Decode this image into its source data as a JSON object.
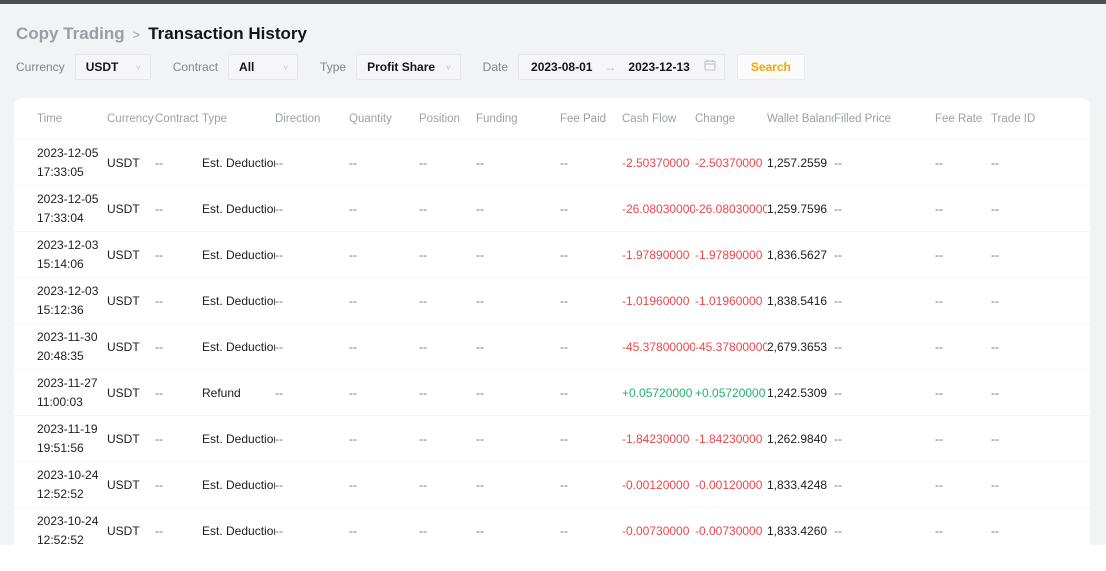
{
  "breadcrumb": {
    "parent": "Copy Trading",
    "separator": ">",
    "current": "Transaction History"
  },
  "filters": {
    "currency": {
      "label": "Currency",
      "value": "USDT"
    },
    "contract": {
      "label": "Contract",
      "value": "All"
    },
    "type": {
      "label": "Type",
      "value": "Profit Share"
    },
    "date": {
      "label": "Date",
      "from": "2023-08-01",
      "arrow": "→",
      "to": "2023-12-13"
    },
    "search_label": "Search"
  },
  "colors": {
    "negative": "#ef454a",
    "positive": "#20b26c",
    "accent": "#f7a600"
  },
  "table": {
    "columns": [
      "Time",
      "Currency",
      "Contract",
      "Type",
      "Direction",
      "Quantity",
      "Position",
      "Funding",
      "Fee Paid",
      "Cash Flow",
      "Change",
      "Wallet Balance",
      "Filled Price",
      "Fee Rate",
      "Trade ID"
    ],
    "rows": [
      {
        "date": "2023-12-05",
        "time": "17:33:05",
        "currency": "USDT",
        "contract": "--",
        "type": "Est. Deduction",
        "direction": "--",
        "quantity": "--",
        "position": "--",
        "funding": "--",
        "feePaid": "--",
        "cashFlow": "-2.50370000",
        "change": "-2.50370000",
        "walletBalance": "1,257.2559",
        "filledPrice": "--",
        "feeRate": "--",
        "tradeId": "--"
      },
      {
        "date": "2023-12-05",
        "time": "17:33:04",
        "currency": "USDT",
        "contract": "--",
        "type": "Est. Deduction",
        "direction": "--",
        "quantity": "--",
        "position": "--",
        "funding": "--",
        "feePaid": "--",
        "cashFlow": "-26.08030000",
        "change": "-26.08030000",
        "walletBalance": "1,259.7596",
        "filledPrice": "--",
        "feeRate": "--",
        "tradeId": "--"
      },
      {
        "date": "2023-12-03",
        "time": "15:14:06",
        "currency": "USDT",
        "contract": "--",
        "type": "Est. Deduction",
        "direction": "--",
        "quantity": "--",
        "position": "--",
        "funding": "--",
        "feePaid": "--",
        "cashFlow": "-1.97890000",
        "change": "-1.97890000",
        "walletBalance": "1,836.5627",
        "filledPrice": "--",
        "feeRate": "--",
        "tradeId": "--"
      },
      {
        "date": "2023-12-03",
        "time": "15:12:36",
        "currency": "USDT",
        "contract": "--",
        "type": "Est. Deduction",
        "direction": "--",
        "quantity": "--",
        "position": "--",
        "funding": "--",
        "feePaid": "--",
        "cashFlow": "-1.01960000",
        "change": "-1.01960000",
        "walletBalance": "1,838.5416",
        "filledPrice": "--",
        "feeRate": "--",
        "tradeId": "--"
      },
      {
        "date": "2023-11-30",
        "time": "20:48:35",
        "currency": "USDT",
        "contract": "--",
        "type": "Est. Deduction",
        "direction": "--",
        "quantity": "--",
        "position": "--",
        "funding": "--",
        "feePaid": "--",
        "cashFlow": "-45.37800000",
        "change": "-45.37800000",
        "walletBalance": "2,679.3653",
        "filledPrice": "--",
        "feeRate": "--",
        "tradeId": "--"
      },
      {
        "date": "2023-11-27",
        "time": "11:00:03",
        "currency": "USDT",
        "contract": "--",
        "type": "Refund",
        "direction": "--",
        "quantity": "--",
        "position": "--",
        "funding": "--",
        "feePaid": "--",
        "cashFlow": "+0.05720000",
        "change": "+0.05720000",
        "walletBalance": "1,242.5309",
        "filledPrice": "--",
        "feeRate": "--",
        "tradeId": "--"
      },
      {
        "date": "2023-11-19",
        "time": "19:51:56",
        "currency": "USDT",
        "contract": "--",
        "type": "Est. Deduction",
        "direction": "--",
        "quantity": "--",
        "position": "--",
        "funding": "--",
        "feePaid": "--",
        "cashFlow": "-1.84230000",
        "change": "-1.84230000",
        "walletBalance": "1,262.9840",
        "filledPrice": "--",
        "feeRate": "--",
        "tradeId": "--"
      },
      {
        "date": "2023-10-24",
        "time": "12:52:52",
        "currency": "USDT",
        "contract": "--",
        "type": "Est. Deduction",
        "direction": "--",
        "quantity": "--",
        "position": "--",
        "funding": "--",
        "feePaid": "--",
        "cashFlow": "-0.00120000",
        "change": "-0.00120000",
        "walletBalance": "1,833.4248",
        "filledPrice": "--",
        "feeRate": "--",
        "tradeId": "--"
      },
      {
        "date": "2023-10-24",
        "time": "12:52:52",
        "currency": "USDT",
        "contract": "--",
        "type": "Est. Deduction",
        "direction": "--",
        "quantity": "--",
        "position": "--",
        "funding": "--",
        "feePaid": "--",
        "cashFlow": "-0.00730000",
        "change": "-0.00730000",
        "walletBalance": "1,833.4260",
        "filledPrice": "--",
        "feeRate": "--",
        "tradeId": "--"
      }
    ]
  }
}
